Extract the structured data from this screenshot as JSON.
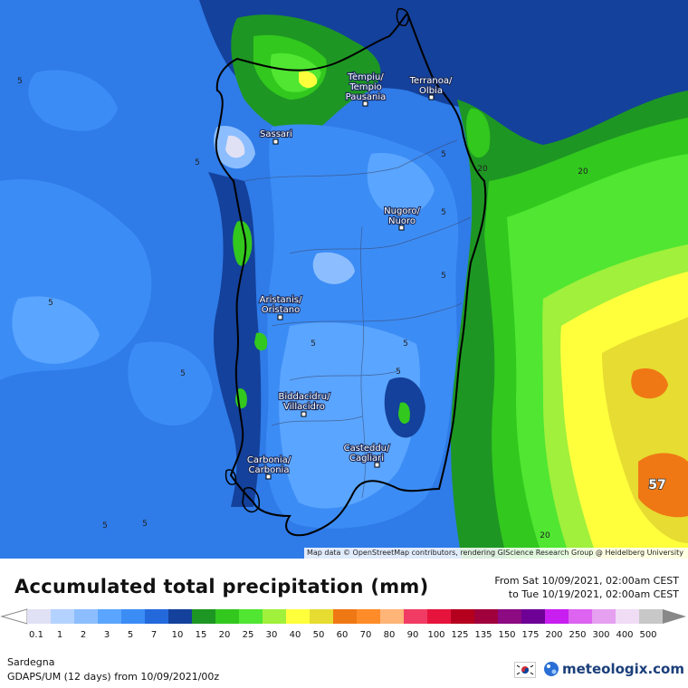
{
  "map": {
    "region_name": "Sardegna",
    "peak_value_label": "57",
    "contour_labels": [
      "5",
      "5",
      "5",
      "5",
      "5",
      "5",
      "5",
      "5",
      "5",
      "5",
      "5",
      "5",
      "20",
      "20",
      "20"
    ],
    "cities": [
      {
        "name_line1": "Tèmpiu/",
        "name_line2": "Tempio",
        "name_line3": "Pausania"
      },
      {
        "name_line1": "Terranoa/",
        "name_line2": "Olbia"
      },
      {
        "name_line1": "Sassari"
      },
      {
        "name_line1": "Nugoro/",
        "name_line2": "Nuoro"
      },
      {
        "name_line1": "Aristanis/",
        "name_line2": "Oristano"
      },
      {
        "name_line1": "Biddacidru/",
        "name_line2": "Villacidro"
      },
      {
        "name_line1": "Casteddu/",
        "name_line2": "Cagliari"
      },
      {
        "name_line1": "Carbonia/",
        "name_line2": "Carbonia"
      }
    ],
    "attribution": "Map data © OpenStreetMap contributors, rendering GIScience Research Group @ Heidelberg University"
  },
  "legend": {
    "title": "Accumulated total precipitation (mm)",
    "period_from": "From Sat 10/09/2021, 02:00am CEST",
    "period_to": "to Tue 10/19/2021, 02:00am CEST",
    "scale": [
      {
        "value": "0.1",
        "color": "#e1e1f5"
      },
      {
        "value": "1",
        "color": "#b4d2ff"
      },
      {
        "value": "2",
        "color": "#8cbeff"
      },
      {
        "value": "3",
        "color": "#5aa5ff"
      },
      {
        "value": "5",
        "color": "#3c8cf5"
      },
      {
        "value": "7",
        "color": "#2369dc"
      },
      {
        "value": "10",
        "color": "#14419b"
      },
      {
        "value": "15",
        "color": "#1e9623"
      },
      {
        "value": "20",
        "color": "#32c81e"
      },
      {
        "value": "25",
        "color": "#50e632"
      },
      {
        "value": "30",
        "color": "#a0f03c"
      },
      {
        "value": "40",
        "color": "#ffff3c"
      },
      {
        "value": "50",
        "color": "#e6dc32"
      },
      {
        "value": "60",
        "color": "#f07814"
      },
      {
        "value": "70",
        "color": "#ff8c28"
      },
      {
        "value": "80",
        "color": "#ffb478"
      },
      {
        "value": "90",
        "color": "#f03c64"
      },
      {
        "value": "100",
        "color": "#e6143c"
      },
      {
        "value": "125",
        "color": "#b4001e"
      },
      {
        "value": "135",
        "color": "#a0003c"
      },
      {
        "value": "150",
        "color": "#8c0a82"
      },
      {
        "value": "175",
        "color": "#6e0096"
      },
      {
        "value": "200",
        "color": "#c81ef0"
      },
      {
        "value": "250",
        "color": "#dc64f0"
      },
      {
        "value": "300",
        "color": "#e6a0f0"
      },
      {
        "value": "400",
        "color": "#f0dcf5"
      },
      {
        "value": "500",
        "color": "#c8c8c8"
      }
    ]
  },
  "footer": {
    "region": "Sardegna",
    "model_info": "GDAPS/UM (12 days) from 10/09/2021/00z",
    "brand": "meteologix.com"
  },
  "colors": {
    "sea_blue": "#2369dc",
    "sea_deep": "#14419b",
    "land_light": "#5aa5ff",
    "land_lighter": "#8cbeff",
    "green_dark": "#1e9623",
    "green": "#32c81e",
    "green_light": "#50e632",
    "yellow_green": "#a0f03c",
    "yellow": "#ffff3c",
    "olive": "#e6dc32",
    "orange": "#f07814"
  }
}
